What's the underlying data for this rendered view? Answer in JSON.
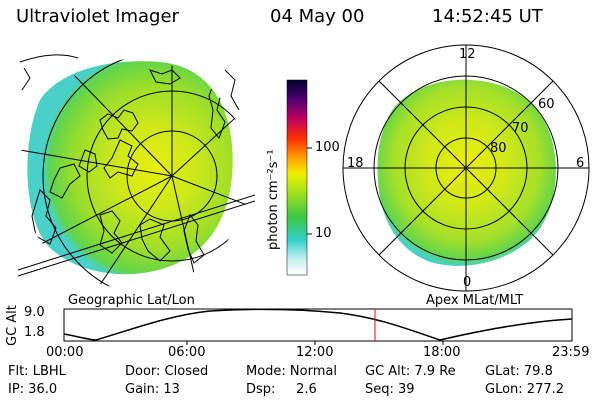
{
  "header": {
    "instrument": "Ultraviolet Imager",
    "date": "04 May 00",
    "time": "14:52:45 UT"
  },
  "left_panel": {
    "label": "Geographic Lat/Lon"
  },
  "right_panel": {
    "label": "Apex MLat/MLT",
    "mlt_labels": [
      "12",
      "18",
      "6",
      "0"
    ],
    "mlat_labels": [
      "60",
      "70",
      "80"
    ]
  },
  "colorbar": {
    "unit_label": "photon cm⁻²s⁻¹",
    "tick_labels": [
      "100",
      "10"
    ]
  },
  "altitude_plot": {
    "ylabel": "GC Alt",
    "y_ticks": [
      "9.0",
      "1.8"
    ],
    "time_ticks": [
      "00:00",
      "06:00",
      "12:00",
      "18:00",
      "23:59"
    ],
    "marker_time": "14:52:45",
    "marker_color": "#ff0000"
  },
  "info": {
    "filter": "Flt: LBHL",
    "door": "Door: Closed",
    "mode": "Mode: Normal",
    "gc_alt": "GC Alt: 7.9 Re",
    "glat": "GLat:  79.8",
    "ip": "IP: 36.0",
    "gain": "Gain: 13",
    "dsp": "Dsp:     2.6",
    "seq": "Seq: 39",
    "glon": "GLon: 277.2"
  }
}
